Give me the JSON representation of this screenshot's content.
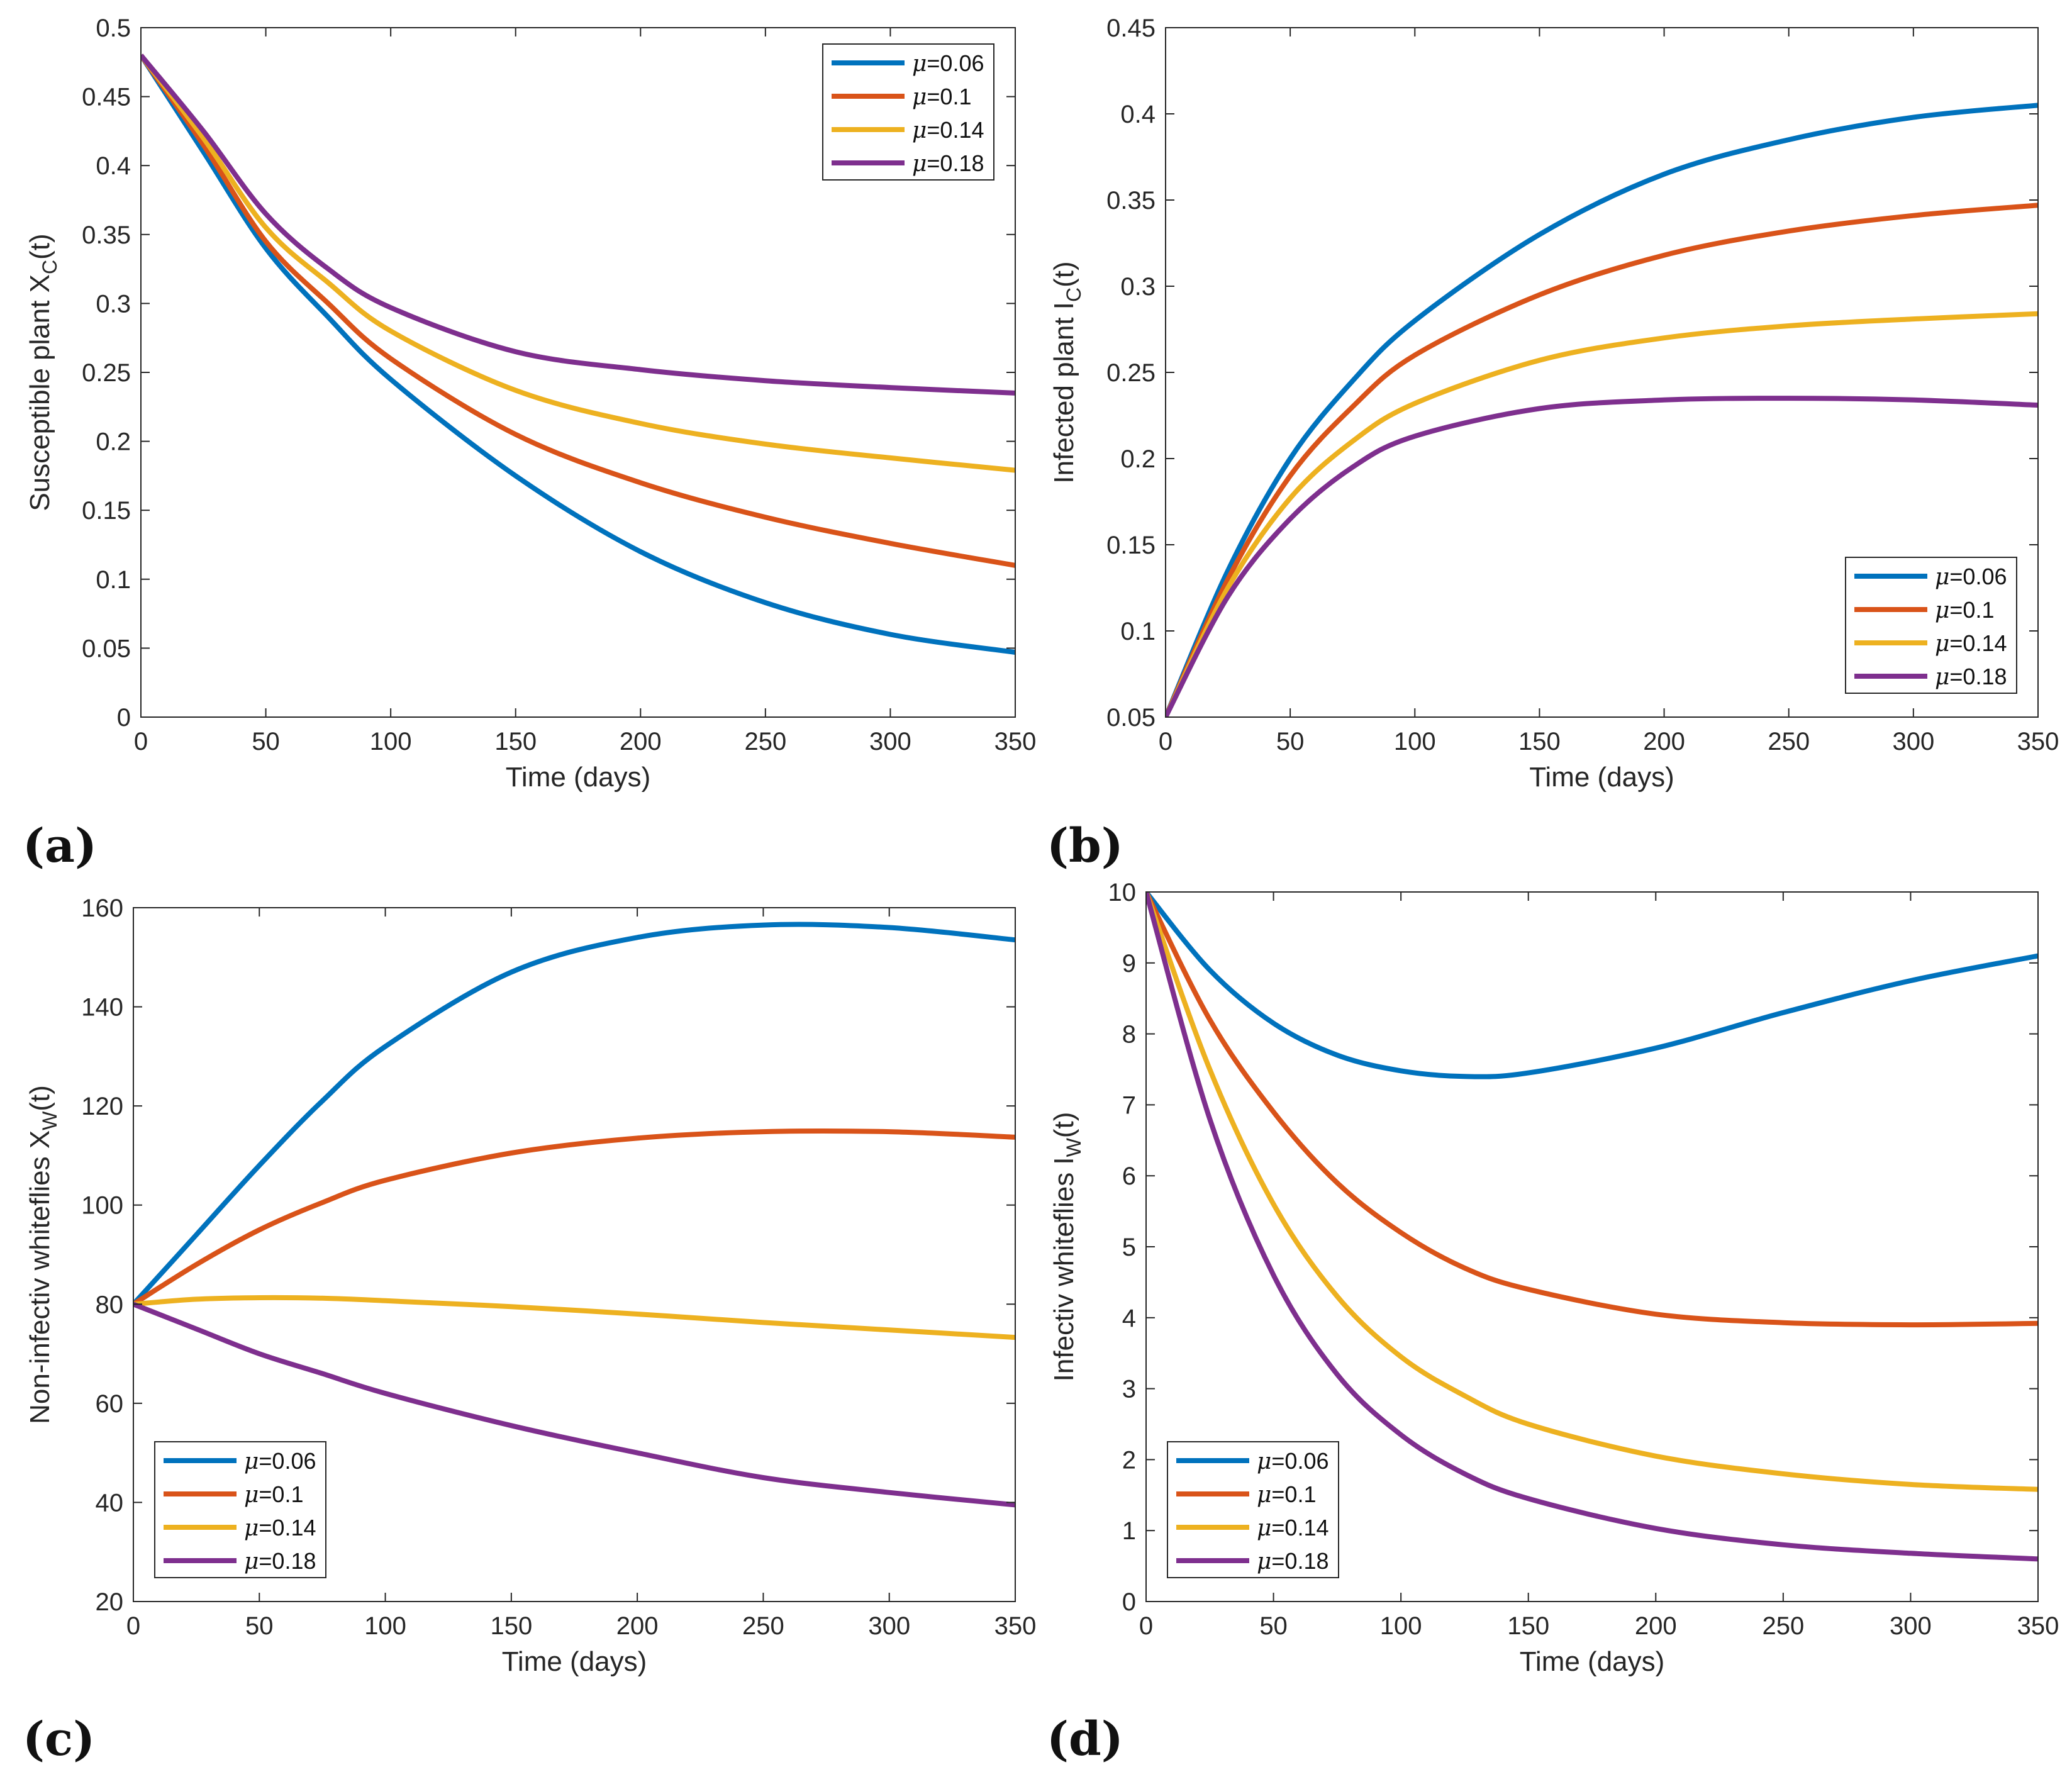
{
  "figure": {
    "panel_labels": [
      "(a)",
      "(b)",
      "(c)",
      "(d)"
    ]
  },
  "chart_data": [
    {
      "type": "line",
      "panel": "(a)",
      "title": "",
      "xlabel": "Time (days)",
      "ylabel": "Susceptible plant X_C(t)",
      "ylabel_main": "Susceptible plant X",
      "ylabel_sub": "C",
      "ylabel_tail": "(t)",
      "xlim": [
        0,
        350
      ],
      "ylim": [
        0,
        0.5
      ],
      "xticks": [
        0,
        50,
        100,
        150,
        200,
        250,
        300,
        350
      ],
      "xtick_labels": [
        "0",
        "50",
        "100",
        "150",
        "200",
        "250",
        "300",
        "350"
      ],
      "yticks": [
        0,
        0.05,
        0.1,
        0.15,
        0.2,
        0.25,
        0.3,
        0.35,
        0.4,
        0.45,
        0.5
      ],
      "ytick_labels": [
        "0",
        "0.05",
        "0.1",
        "0.15",
        "0.2",
        "0.25",
        "0.3",
        "0.35",
        "0.4",
        "0.45",
        "0.5"
      ],
      "legend_position": "top-right",
      "x": [
        0,
        25,
        50,
        75,
        100,
        150,
        200,
        250,
        300,
        350
      ],
      "series": [
        {
          "name": "μ=0.06",
          "symbol": "μ",
          "value_label": "=0.06",
          "color": "#0072BD",
          "values": [
            0.48,
            0.41,
            0.34,
            0.29,
            0.245,
            0.175,
            0.12,
            0.083,
            0.06,
            0.047
          ]
        },
        {
          "name": "μ=0.1",
          "symbol": "μ",
          "value_label": "=0.1",
          "color": "#D95319",
          "values": [
            0.48,
            0.415,
            0.345,
            0.3,
            0.26,
            0.205,
            0.17,
            0.145,
            0.126,
            0.11
          ]
        },
        {
          "name": "μ=0.14",
          "symbol": "μ",
          "value_label": "=0.14",
          "color": "#EDB120",
          "values": [
            0.48,
            0.42,
            0.355,
            0.315,
            0.28,
            0.237,
            0.213,
            0.198,
            0.188,
            0.179
          ]
        },
        {
          "name": "μ=0.18",
          "symbol": "μ",
          "value_label": "=0.18",
          "color": "#7E2F8E",
          "values": [
            0.48,
            0.425,
            0.365,
            0.325,
            0.297,
            0.265,
            0.252,
            0.244,
            0.239,
            0.235
          ]
        }
      ]
    },
    {
      "type": "line",
      "panel": "(b)",
      "title": "",
      "xlabel": "Time (days)",
      "ylabel": "Infected plant I_C(t)",
      "ylabel_main": "Infected plant I",
      "ylabel_sub": "C",
      "ylabel_tail": "(t)",
      "xlim": [
        0,
        350
      ],
      "ylim": [
        0.05,
        0.45
      ],
      "xticks": [
        0,
        50,
        100,
        150,
        200,
        250,
        300,
        350
      ],
      "xtick_labels": [
        "0",
        "50",
        "100",
        "150",
        "200",
        "250",
        "300",
        "350"
      ],
      "yticks": [
        0.05,
        0.1,
        0.15,
        0.2,
        0.25,
        0.3,
        0.35,
        0.4,
        0.45
      ],
      "ytick_labels": [
        "0.05",
        "0.1",
        "0.15",
        "0.2",
        "0.25",
        "0.3",
        "0.35",
        "0.4",
        "0.45"
      ],
      "legend_position": "bottom-right",
      "x": [
        0,
        25,
        50,
        75,
        100,
        150,
        200,
        250,
        300,
        350
      ],
      "series": [
        {
          "name": "μ=0.06",
          "symbol": "μ",
          "value_label": "=0.06",
          "color": "#0072BD",
          "values": [
            0.05,
            0.135,
            0.2,
            0.245,
            0.28,
            0.33,
            0.365,
            0.385,
            0.398,
            0.405
          ]
        },
        {
          "name": "μ=0.1",
          "symbol": "μ",
          "value_label": "=0.1",
          "color": "#D95319",
          "values": [
            0.05,
            0.13,
            0.19,
            0.23,
            0.26,
            0.295,
            0.318,
            0.332,
            0.341,
            0.347
          ]
        },
        {
          "name": "μ=0.14",
          "symbol": "μ",
          "value_label": "=0.14",
          "color": "#EDB120",
          "values": [
            0.05,
            0.125,
            0.177,
            0.21,
            0.232,
            0.257,
            0.27,
            0.277,
            0.281,
            0.284
          ]
        },
        {
          "name": "μ=0.18",
          "symbol": "μ",
          "value_label": "=0.18",
          "color": "#7E2F8E",
          "values": [
            0.05,
            0.12,
            0.165,
            0.195,
            0.213,
            0.229,
            0.234,
            0.235,
            0.234,
            0.231
          ]
        }
      ]
    },
    {
      "type": "line",
      "panel": "(c)",
      "title": "",
      "xlabel": "Time (days)",
      "ylabel": "Non-infectiv whiteflies X_W(t)",
      "ylabel_main": "Non-infectiv whiteflies X",
      "ylabel_sub": "W",
      "ylabel_tail": "(t)",
      "xlim": [
        0,
        350
      ],
      "ylim": [
        20,
        160
      ],
      "xticks": [
        0,
        50,
        100,
        150,
        200,
        250,
        300,
        350
      ],
      "xtick_labels": [
        "0",
        "50",
        "100",
        "150",
        "200",
        "250",
        "300",
        "350"
      ],
      "yticks": [
        20,
        40,
        60,
        80,
        100,
        120,
        140,
        160
      ],
      "ytick_labels": [
        "20",
        "40",
        "60",
        "80",
        "100",
        "120",
        "140",
        "160"
      ],
      "legend_position": "bottom-left",
      "x": [
        0,
        25,
        50,
        75,
        100,
        150,
        200,
        250,
        300,
        350
      ],
      "series": [
        {
          "name": "μ=0.06",
          "symbol": "μ",
          "value_label": "=0.06",
          "color": "#0072BD",
          "values": [
            80,
            94,
            108,
            121,
            132,
            147,
            154,
            156.5,
            156,
            153.5
          ]
        },
        {
          "name": "μ=0.1",
          "symbol": "μ",
          "value_label": "=0.1",
          "color": "#D95319",
          "values": [
            80,
            88,
            95,
            100.5,
            105,
            110.5,
            113.5,
            114.8,
            114.8,
            113.7
          ]
        },
        {
          "name": "μ=0.14",
          "symbol": "μ",
          "value_label": "=0.14",
          "color": "#EDB120",
          "values": [
            80,
            81,
            81.3,
            81.2,
            80.7,
            79.5,
            78,
            76.3,
            74.8,
            73.3
          ]
        },
        {
          "name": "μ=0.18",
          "symbol": "μ",
          "value_label": "=0.18",
          "color": "#7E2F8E",
          "values": [
            80,
            75,
            70,
            66,
            62,
            55.5,
            50,
            45,
            42,
            39.5
          ]
        }
      ]
    },
    {
      "type": "line",
      "panel": "(d)",
      "title": "",
      "xlabel": "Time (days)",
      "ylabel": "Infectiv whiteflies I_W(t)",
      "ylabel_main": "Infectiv whiteflies I",
      "ylabel_sub": "W",
      "ylabel_tail": "(t)",
      "xlim": [
        0,
        350
      ],
      "ylim": [
        0,
        10
      ],
      "xticks": [
        0,
        50,
        100,
        150,
        200,
        250,
        300,
        350
      ],
      "xtick_labels": [
        "0",
        "50",
        "100",
        "150",
        "200",
        "250",
        "300",
        "350"
      ],
      "yticks": [
        0,
        1,
        2,
        3,
        4,
        5,
        6,
        7,
        8,
        9,
        10
      ],
      "ytick_labels": [
        "0",
        "1",
        "2",
        "3",
        "4",
        "5",
        "6",
        "7",
        "8",
        "9",
        "10"
      ],
      "legend_position": "bottom-left",
      "x": [
        0,
        25,
        50,
        75,
        100,
        125,
        150,
        200,
        250,
        300,
        350
      ],
      "series": [
        {
          "name": "μ=0.06",
          "symbol": "μ",
          "value_label": "=0.06",
          "color": "#0072BD",
          "values": [
            10,
            8.9,
            8.15,
            7.7,
            7.48,
            7.4,
            7.45,
            7.8,
            8.3,
            8.75,
            9.1
          ]
        },
        {
          "name": "μ=0.1",
          "symbol": "μ",
          "value_label": "=0.1",
          "color": "#D95319",
          "values": [
            10,
            8.2,
            6.9,
            5.9,
            5.2,
            4.7,
            4.4,
            4.05,
            3.93,
            3.9,
            3.92
          ]
        },
        {
          "name": "μ=0.14",
          "symbol": "μ",
          "value_label": "=0.14",
          "color": "#EDB120",
          "values": [
            10,
            7.5,
            5.6,
            4.3,
            3.45,
            2.9,
            2.5,
            2.05,
            1.8,
            1.65,
            1.58
          ]
        },
        {
          "name": "μ=0.18",
          "symbol": "μ",
          "value_label": "=0.18",
          "color": "#7E2F8E",
          "values": [
            10,
            6.8,
            4.6,
            3.2,
            2.35,
            1.8,
            1.45,
            1.03,
            0.8,
            0.68,
            0.6
          ]
        }
      ]
    }
  ]
}
